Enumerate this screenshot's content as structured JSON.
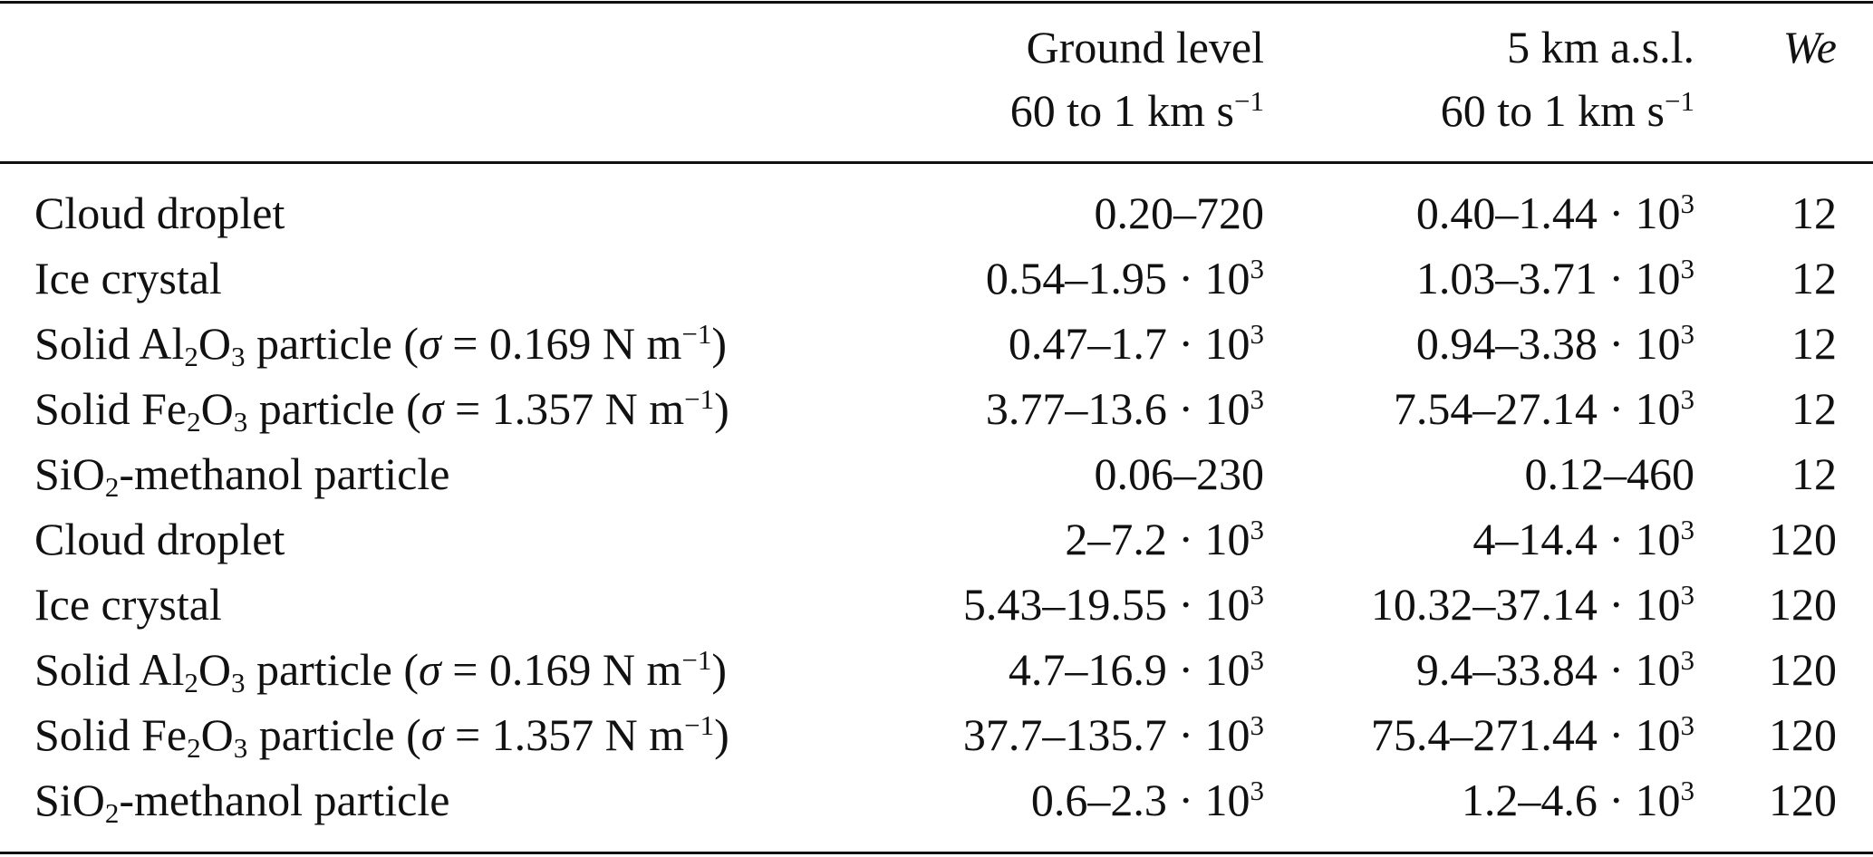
{
  "header": {
    "ground": {
      "line1": "Ground level",
      "line2": "60 to 1 km s",
      "line2_exp": "−1"
    },
    "altitude": {
      "line1": "5 km a.s.l.",
      "line2": "60 to 1 km s",
      "line2_exp": "−1"
    },
    "we": "We"
  },
  "rows": [
    {
      "type": "plain",
      "label": "Cloud droplet",
      "ground": {
        "base": "0.20–720",
        "exp": ""
      },
      "alt": {
        "base": "0.40–1.44 · 10",
        "exp": "3"
      },
      "we": "12"
    },
    {
      "type": "plain",
      "label": "Ice crystal",
      "ground": {
        "base": "0.54–1.95 · 10",
        "exp": "3"
      },
      "alt": {
        "base": "1.03–3.71 · 10",
        "exp": "3"
      },
      "we": "12"
    },
    {
      "type": "oxide",
      "prefix": "Solid Al",
      "sub1": "2",
      "mid": "O",
      "sub2": "3",
      "suffix": " particle (",
      "sigma": "σ",
      "value": " = 0.169 N m",
      "exp": "−1",
      "close": ")",
      "ground": {
        "base": "0.47–1.7 · 10",
        "exp": "3"
      },
      "alt": {
        "base": "0.94–3.38 · 10",
        "exp": "3"
      },
      "we": "12"
    },
    {
      "type": "oxide",
      "prefix": "Solid Fe",
      "sub1": "2",
      "mid": "O",
      "sub2": "3",
      "suffix": " particle (",
      "sigma": "σ",
      "value": " = 1.357 N m",
      "exp": "−1",
      "close": ")",
      "ground": {
        "base": "3.77–13.6 · 10",
        "exp": "3"
      },
      "alt": {
        "base": "7.54–27.14 · 10",
        "exp": "3"
      },
      "we": "12"
    },
    {
      "type": "silica",
      "prefix": "SiO",
      "sub1": "2",
      "suffix": "-methanol particle",
      "ground": {
        "base": "0.06–230",
        "exp": ""
      },
      "alt": {
        "base": "0.12–460",
        "exp": ""
      },
      "we": "12"
    },
    {
      "type": "plain",
      "label": "Cloud droplet",
      "ground": {
        "base": "2–7.2 · 10",
        "exp": "3"
      },
      "alt": {
        "base": "4–14.4 · 10",
        "exp": "3"
      },
      "we": "120"
    },
    {
      "type": "plain",
      "label": "Ice crystal",
      "ground": {
        "base": "5.43–19.55 · 10",
        "exp": "3"
      },
      "alt": {
        "base": "10.32–37.14 · 10",
        "exp": "3"
      },
      "we": "120"
    },
    {
      "type": "oxide",
      "prefix": "Solid Al",
      "sub1": "2",
      "mid": "O",
      "sub2": "3",
      "suffix": " particle (",
      "sigma": "σ",
      "value": " = 0.169 N m",
      "exp": "−1",
      "close": ")",
      "ground": {
        "base": "4.7–16.9 · 10",
        "exp": "3"
      },
      "alt": {
        "base": "9.4–33.84 · 10",
        "exp": "3"
      },
      "we": "120"
    },
    {
      "type": "oxide",
      "prefix": "Solid Fe",
      "sub1": "2",
      "mid": "O",
      "sub2": "3",
      "suffix": " particle (",
      "sigma": "σ",
      "value": " = 1.357 N m",
      "exp": "−1",
      "close": ")",
      "ground": {
        "base": "37.7–135.7 · 10",
        "exp": "3"
      },
      "alt": {
        "base": "75.4–271.44 · 10",
        "exp": "3"
      },
      "we": "120"
    },
    {
      "type": "silica",
      "prefix": "SiO",
      "sub1": "2",
      "suffix": "-methanol particle",
      "ground": {
        "base": "0.6–2.3 · 10",
        "exp": "3"
      },
      "alt": {
        "base": "1.2–4.6 · 10",
        "exp": "3"
      },
      "we": "120"
    }
  ]
}
